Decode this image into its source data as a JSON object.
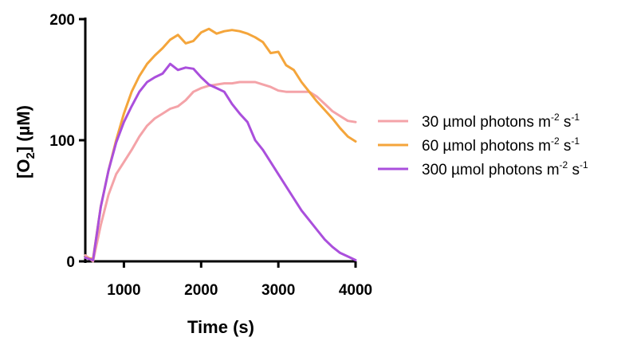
{
  "chart_data": {
    "type": "line",
    "xlabel": "Time (s)",
    "ylabel": {
      "prefix": "[O",
      "subscript": "2",
      "suffix": "] (µM)"
    },
    "xlim": [
      500,
      4000
    ],
    "ylim": [
      0,
      200
    ],
    "xticks": [
      1000,
      2000,
      3000,
      4000
    ],
    "yticks": [
      0,
      100,
      200
    ],
    "grid": false,
    "legend_position": "right",
    "series": [
      {
        "name": {
          "main": "30 µmol photons m",
          "sup1": "-2",
          "mid": " s",
          "sup2": "-1"
        },
        "color": "#f4a3a8",
        "x": [
          500,
          600,
          700,
          800,
          900,
          1000,
          1100,
          1200,
          1300,
          1400,
          1500,
          1600,
          1700,
          1800,
          1900,
          2000,
          2100,
          2200,
          2300,
          2400,
          2500,
          2600,
          2700,
          2800,
          2900,
          3000,
          3100,
          3200,
          3300,
          3400,
          3500,
          3600,
          3700,
          3800,
          3900,
          4000
        ],
        "y": [
          5,
          0,
          30,
          55,
          72,
          82,
          92,
          103,
          112,
          118,
          122,
          126,
          128,
          133,
          140,
          143,
          145,
          146,
          147,
          147,
          148,
          148,
          148,
          146,
          144,
          141,
          140,
          140,
          140,
          140,
          136,
          130,
          124,
          120,
          116,
          115
        ]
      },
      {
        "name": {
          "main": "60 µmol photons m",
          "sup1": "-2",
          "mid": " s",
          "sup2": "-1"
        },
        "color": "#f4a53b",
        "x": [
          500,
          600,
          700,
          800,
          900,
          1000,
          1100,
          1200,
          1300,
          1400,
          1500,
          1600,
          1700,
          1800,
          1900,
          2000,
          2100,
          2200,
          2300,
          2400,
          2500,
          2600,
          2700,
          2800,
          2900,
          3000,
          3100,
          3200,
          3300,
          3400,
          3500,
          3600,
          3700,
          3800,
          3900,
          4000
        ],
        "y": [
          3,
          2,
          45,
          75,
          100,
          122,
          140,
          153,
          163,
          170,
          176,
          183,
          187,
          180,
          182,
          189,
          192,
          188,
          190,
          191,
          190,
          188,
          185,
          181,
          172,
          173,
          162,
          158,
          148,
          140,
          132,
          125,
          118,
          110,
          103,
          99
        ]
      },
      {
        "name": {
          "main": "300 µmol photons m",
          "sup1": "-2",
          "mid": " s",
          "sup2": "-1"
        },
        "color": "#aa4fdc",
        "x": [
          500,
          600,
          700,
          800,
          900,
          1000,
          1100,
          1200,
          1300,
          1400,
          1500,
          1600,
          1700,
          1800,
          1900,
          2000,
          2100,
          2200,
          2300,
          2400,
          2500,
          2600,
          2700,
          2800,
          2900,
          3000,
          3100,
          3200,
          3300,
          3400,
          3500,
          3600,
          3700,
          3800,
          3900,
          4000
        ],
        "y": [
          3,
          1,
          45,
          75,
          98,
          115,
          128,
          140,
          148,
          152,
          155,
          163,
          158,
          160,
          159,
          152,
          146,
          143,
          140,
          130,
          122,
          115,
          100,
          92,
          82,
          72,
          62,
          52,
          42,
          34,
          26,
          18,
          12,
          7,
          4,
          1
        ]
      }
    ]
  }
}
